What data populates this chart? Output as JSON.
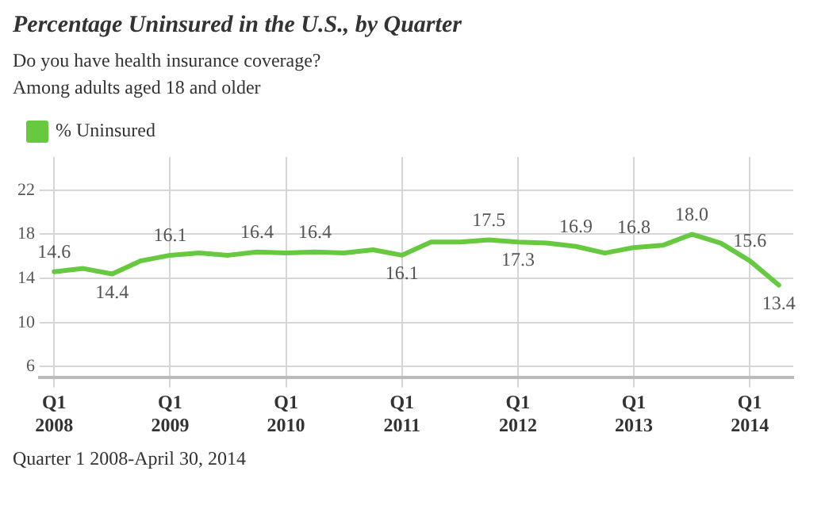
{
  "chart_data": {
    "type": "line",
    "title": "Percentage Uninsured in the U.S., by Quarter",
    "subtitle": "Do you have health insurance coverage?\nAmong adults aged 18 and older",
    "annotations": [
      "Quarter 1 2008-April 30, 2014"
    ],
    "categories": [
      "Q1\n2008",
      null,
      null,
      null,
      "Q1\n2009",
      null,
      null,
      null,
      "Q1\n2010",
      null,
      null,
      null,
      "Q1\n2011",
      null,
      null,
      null,
      "Q1\n2012",
      null,
      null,
      null,
      "Q1\n2013",
      null,
      null,
      null,
      "Q1\n2014",
      null
    ],
    "series": [
      {
        "name": "% Uninsured",
        "color": "#66c93f",
        "values": [
          14.6,
          14.9,
          14.4,
          15.6,
          16.1,
          16.3,
          16.1,
          16.4,
          16.3,
          16.4,
          16.3,
          16.6,
          16.1,
          17.3,
          17.3,
          17.5,
          17.3,
          17.2,
          16.9,
          16.3,
          16.8,
          17.0,
          18.0,
          17.2,
          15.6,
          13.4
        ],
        "value_labels": [
          "14.6",
          null,
          "14.4",
          null,
          "16.1",
          null,
          null,
          "16.4",
          null,
          "16.4",
          null,
          null,
          "16.1",
          null,
          null,
          "17.5",
          "17.3",
          null,
          "16.9",
          null,
          "16.8",
          null,
          "18.0",
          null,
          "15.6",
          "13.4"
        ]
      }
    ],
    "ylim": [
      5,
      25
    ],
    "yticks": [
      6,
      10,
      14,
      18,
      22
    ],
    "grid": true,
    "legend": "top left",
    "marker": "none",
    "line_style": "solid"
  }
}
